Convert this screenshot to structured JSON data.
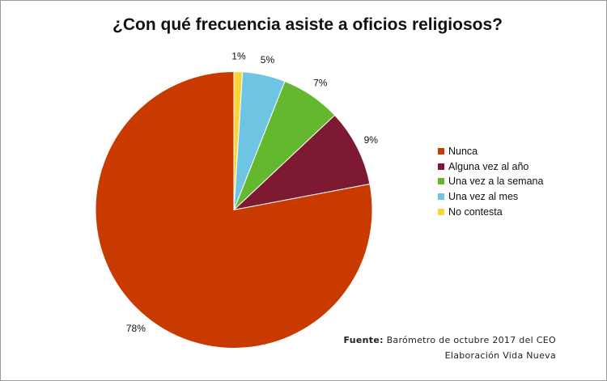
{
  "chart_data": {
    "type": "pie",
    "title": "¿Con qué frecuencia asiste a oficios religiosos?",
    "start": "top",
    "direction": "clockwise",
    "slices": [
      {
        "name": "No contesta",
        "value": 1,
        "label": "1%",
        "color": "#f5d63d"
      },
      {
        "name": "Una vez al mes",
        "value": 5,
        "label": "5%",
        "color": "#6ec4e3"
      },
      {
        "name": "Una vez a la semana",
        "value": 7,
        "label": "7%",
        "color": "#64b82e"
      },
      {
        "name": "Alguna vez al año",
        "value": 9,
        "label": "9%",
        "color": "#7d1a32"
      },
      {
        "name": "Nunca",
        "value": 78,
        "label": "78%",
        "color": "#c93a00"
      }
    ],
    "legend": {
      "placement": "right",
      "entries": [
        "Nunca",
        "Alguna vez al año",
        "Una vez a la semana",
        "Una vez al mes",
        "No contesta"
      ]
    }
  },
  "source": {
    "label": "Fuente:",
    "text": "Barómetro de octubre 2017 del CEO",
    "credit": "Elaboración Vida Nueva"
  }
}
